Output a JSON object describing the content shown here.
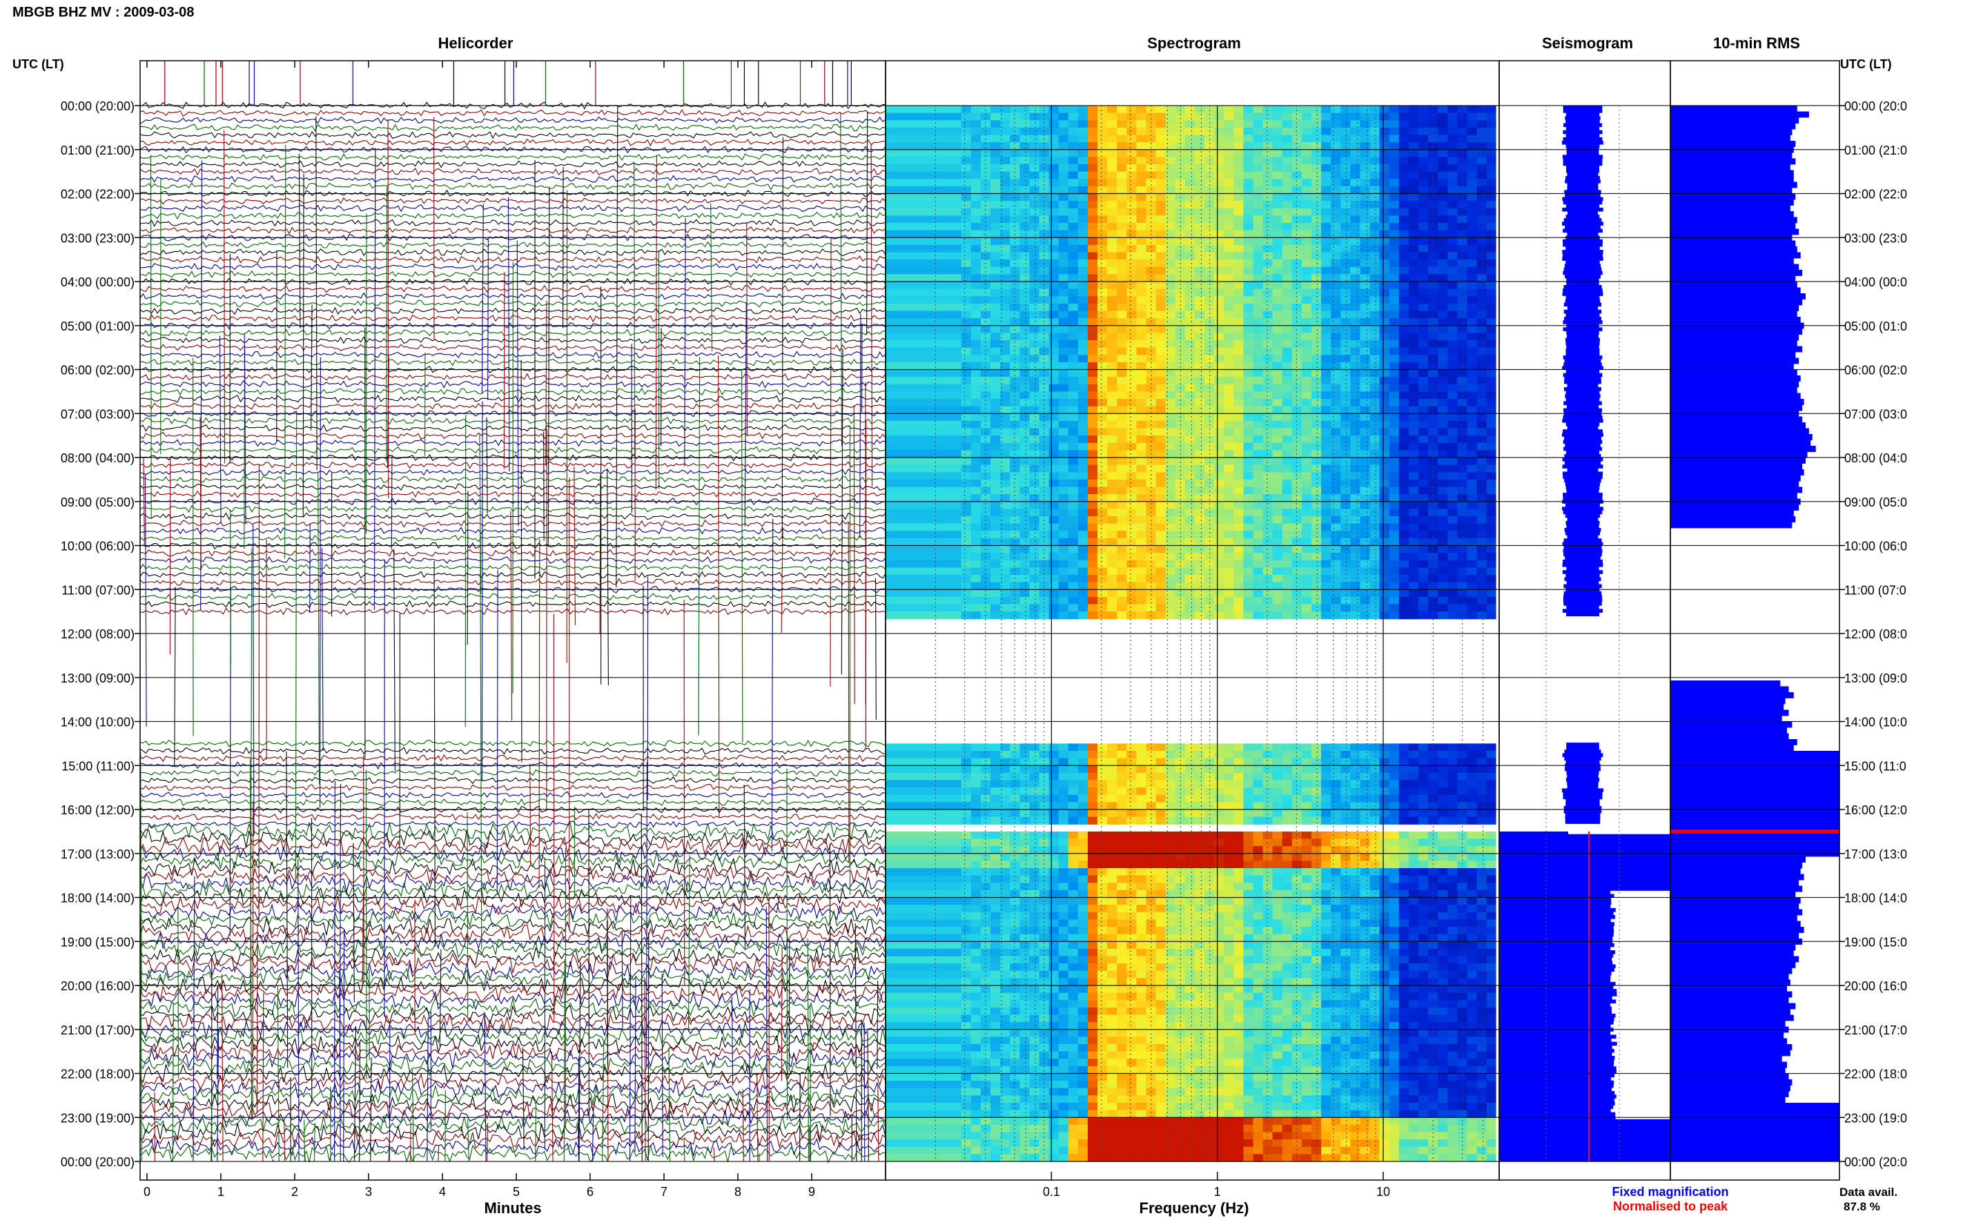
{
  "title": "MBGB BHZ MV : 2009-03-08",
  "panels": {
    "helicorder": "Helicorder",
    "spectrogram": "Spectrogram",
    "seismogram": "Seismogram",
    "rms": "10-min RMS"
  },
  "time_axis_label": "UTC (LT)",
  "hour_labels": [
    "00:00 (20:00)",
    "01:00 (21:00)",
    "02:00 (22:00)",
    "03:00 (23:00)",
    "04:00 (00:00)",
    "05:00 (01:00)",
    "06:00 (02:00)",
    "07:00 (03:00)",
    "08:00 (04:00)",
    "09:00 (05:00)",
    "10:00 (06:00)",
    "11:00 (07:00)",
    "12:00 (08:00)",
    "13:00 (09:00)",
    "14:00 (10:00)",
    "15:00 (11:00)",
    "16:00 (12:00)",
    "17:00 (13:00)",
    "18:00 (14:00)",
    "19:00 (15:00)",
    "20:00 (16:00)",
    "21:00 (17:00)",
    "22:00 (18:00)",
    "23:00 (19:00)",
    "00:00 (20:00)"
  ],
  "right_hour_labels": [
    "00:00 (20:0",
    "01:00 (21:0",
    "02:00 (22:0",
    "03:00 (23:0",
    "04:00 (00:0",
    "05:00 (01:0",
    "06:00 (02:0",
    "07:00 (03:0",
    "08:00 (04:0",
    "09:00 (05:0",
    "10:00 (06:0",
    "11:00 (07:0",
    "12:00 (08:0",
    "13:00 (09:0",
    "14:00 (10:0",
    "15:00 (11:0",
    "16:00 (12:0",
    "17:00 (13:0",
    "18:00 (14:0",
    "19:00 (15:0",
    "20:00 (16:0",
    "21:00 (17:0",
    "22:00 (18:0",
    "23:00 (19:0",
    "00:00 (20:0"
  ],
  "legend": {
    "fixed": "Fixed magnification",
    "fixed_color": "#0000ee",
    "normalised": "Normalised to peak",
    "normalised_color": "#ee0000"
  },
  "data_avail": {
    "label": "Data avail.",
    "value": "87.8 %"
  },
  "colors": {
    "heli_traces": [
      "#000000",
      "#8b0000",
      "#00008b",
      "#006400"
    ],
    "seismogram": "#0000ff",
    "rms": "#0000ff",
    "peak_marker": "#ff0000"
  },
  "chart_data": [
    {
      "type": "line",
      "title": "Helicorder",
      "xlabel": "Minutes",
      "x_ticks": [
        "0",
        "1",
        "2",
        "3",
        "4",
        "5",
        "6",
        "7",
        "8",
        "9"
      ],
      "xlim": [
        0,
        10
      ],
      "ylabel": "UTC (LT)",
      "ylim_hours": [
        0,
        24
      ],
      "data_gaps_utc_hours": [
        [
          11.6,
          14.45
        ]
      ]
    },
    {
      "type": "heatmap",
      "title": "Spectrogram",
      "xlabel": "Frequency (Hz)",
      "x_scale": "log",
      "x_ticks": [
        "0.1",
        "1",
        "10"
      ],
      "xlim_hz": [
        0.01,
        50
      ],
      "ylim_hours": [
        0,
        24
      ],
      "no_data_utc_hours": [
        [
          11.6,
          14.45
        ],
        [
          16.3,
          16.5
        ]
      ],
      "high_energy_utc_hours": [
        [
          16.5,
          17.3
        ],
        [
          23.0,
          24.0
        ]
      ]
    },
    {
      "type": "line",
      "title": "Seismogram",
      "series": [
        {
          "name": "Fixed magnification"
        },
        {
          "name": "Normalised to peak"
        }
      ],
      "saturated_utc_hours": [
        [
          16.5,
          24.0
        ]
      ]
    },
    {
      "type": "bar",
      "title": "10-min RMS",
      "orientation": "horizontal",
      "ylim_hours": [
        0,
        24
      ],
      "peak_utc_hour": 16.5,
      "rms_relative_to_peak": [
        0.75,
        0.82,
        0.76,
        0.74,
        0.72,
        0.71,
        0.74,
        0.73,
        0.72,
        0.74,
        0.71,
        0.73,
        0.73,
        0.75,
        0.72,
        0.74,
        0.73,
        0.71,
        0.73,
        0.75,
        0.74,
        0.76,
        0.72,
        0.74,
        0.75,
        0.77,
        0.73,
        0.76,
        0.78,
        0.74,
        0.75,
        0.77,
        0.8,
        0.78,
        0.76,
        0.75,
        0.77,
        0.79,
        0.78,
        0.76,
        0.75,
        0.78,
        0.74,
        0.76,
        0.73,
        0.75,
        0.77,
        0.76,
        0.75,
        0.77,
        0.79,
        0.78,
        0.76,
        0.78,
        0.8,
        0.82,
        0.84,
        0.83,
        0.86,
        0.81,
        0.8,
        0.78,
        0.79,
        0.77,
        0.76,
        0.78,
        0.75,
        0.77,
        0.76,
        0.73,
        0.74,
        0.72,
        null,
        null,
        null,
        null,
        null,
        null,
        null,
        null,
        null,
        null,
        null,
        null,
        null,
        null,
        null,
        null,
        null,
        null,
        null,
        null,
        null,
        null,
        null,
        null,
        null,
        null,
        0.65,
        0.7,
        0.73,
        0.68,
        0.67,
        0.7,
        0.66,
        0.72,
        0.69,
        0.7,
        0.75,
        0.73,
        1.0,
        1.0,
        1.0,
        1.0,
        1.0,
        1.0,
        1.0,
        1.0,
        1.0,
        1.0,
        1.0,
        1.0,
        1.0,
        1.0,
        1.0,
        1.0,
        1.0,
        1.0,
        0.8,
        0.78,
        0.77,
        0.79,
        0.76,
        0.78,
        0.74,
        0.77,
        0.76,
        0.78,
        0.75,
        0.77,
        0.79,
        0.76,
        0.78,
        0.74,
        0.73,
        0.76,
        0.74,
        0.72,
        0.7,
        0.71,
        0.69,
        0.72,
        0.7,
        0.74,
        0.71,
        0.73,
        0.68,
        0.7,
        0.67,
        0.69,
        0.72,
        0.71,
        0.66,
        0.69,
        0.68,
        0.7,
        0.72,
        0.71,
        0.7,
        0.68,
        1.0,
        1.0,
        1.0,
        1.0,
        1.0,
        1.0,
        1.0,
        1.0,
        1.0,
        1.0
      ]
    }
  ]
}
